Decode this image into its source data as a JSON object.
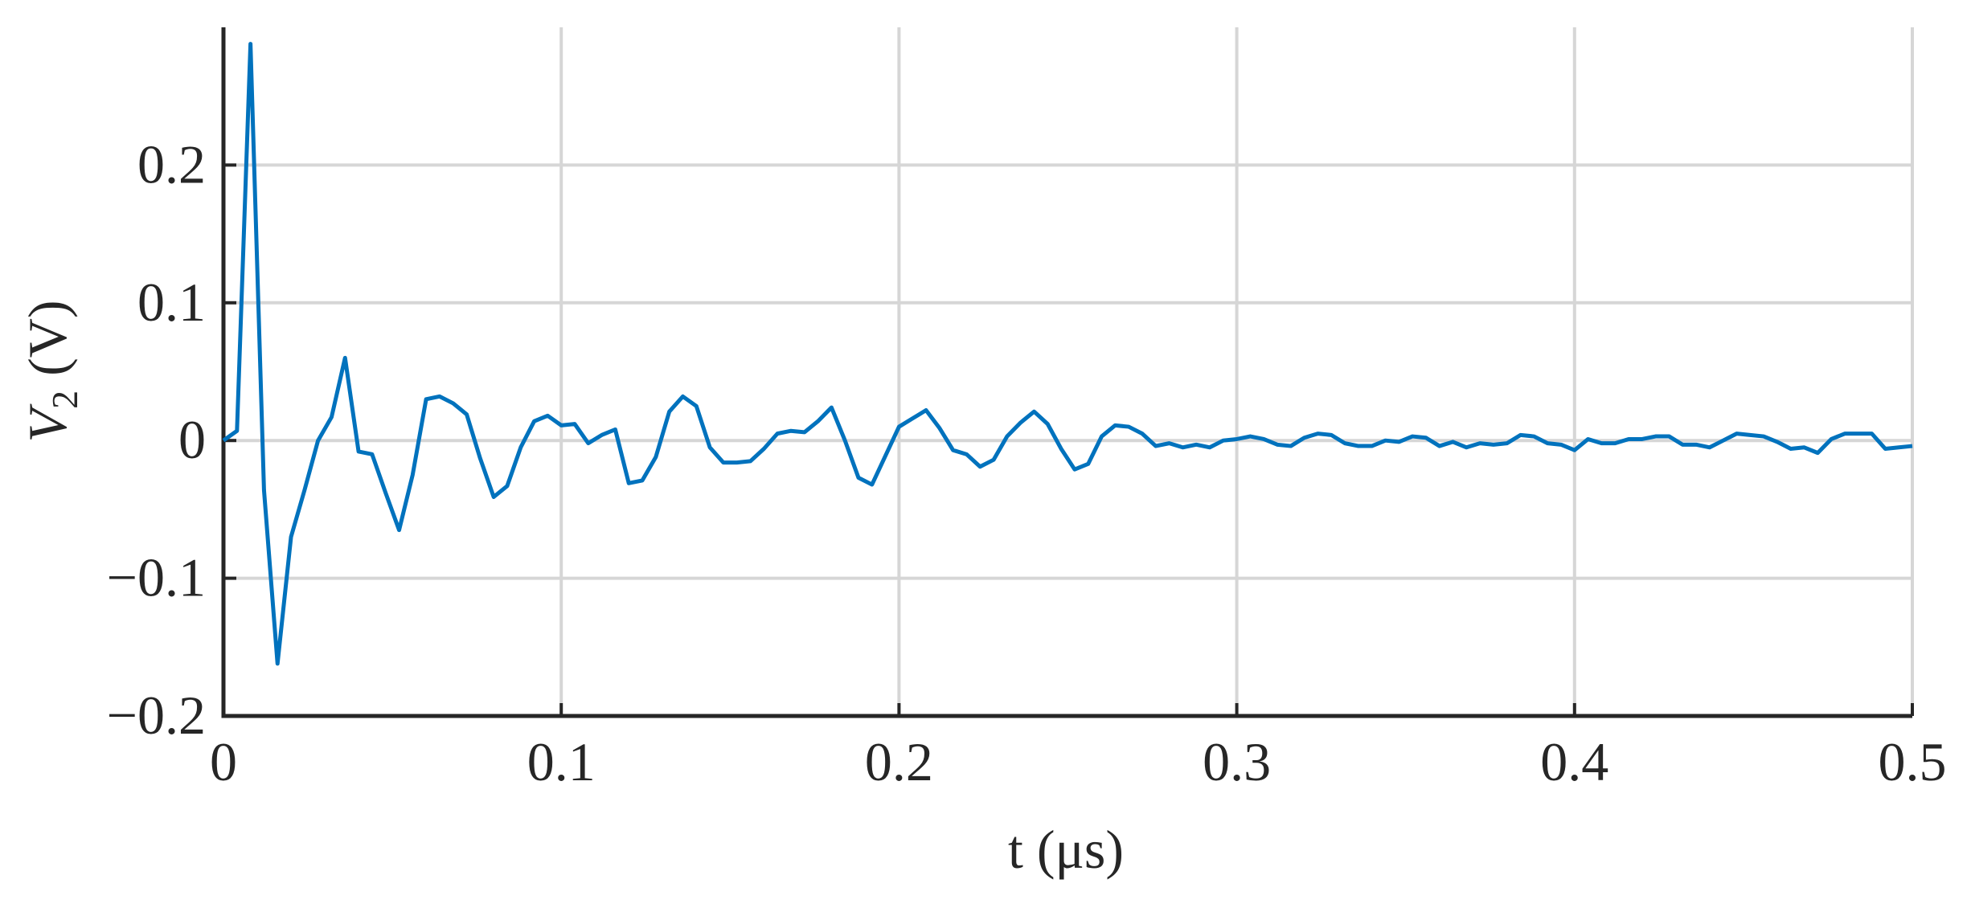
{
  "chart_data": {
    "type": "line",
    "xlabel": "t (μs)",
    "ylabel": {
      "symbol": "V",
      "subscript": "2",
      "unit": "(V)"
    },
    "xlim": [
      0,
      0.5
    ],
    "ylim": [
      -0.2,
      0.3
    ],
    "xticks": [
      0,
      0.1,
      0.2,
      0.3,
      0.4,
      0.5
    ],
    "yticks": [
      {
        "value": -0.2,
        "label": "−0.2"
      },
      {
        "value": -0.1,
        "label": "−0.1"
      },
      0,
      0.1,
      0.2
    ],
    "grid": true,
    "x": [
      0,
      0.004,
      0.008,
      0.012,
      0.016,
      0.02,
      0.024,
      0.028,
      0.032,
      0.036,
      0.04,
      0.044,
      0.048,
      0.052,
      0.056,
      0.06,
      0.064,
      0.068,
      0.072,
      0.076,
      0.08,
      0.084,
      0.088,
      0.092,
      0.096,
      0.1,
      0.104,
      0.108,
      0.112,
      0.116,
      0.12,
      0.124,
      0.128,
      0.132,
      0.136,
      0.14,
      0.144,
      0.148,
      0.152,
      0.156,
      0.16,
      0.164,
      0.168,
      0.172,
      0.176,
      0.18,
      0.184,
      0.188,
      0.192,
      0.196,
      0.2,
      0.204,
      0.208,
      0.212,
      0.216,
      0.22,
      0.224,
      0.228,
      0.232,
      0.236,
      0.24,
      0.244,
      0.248,
      0.252,
      0.256,
      0.26,
      0.264,
      0.268,
      0.272,
      0.276,
      0.28,
      0.284,
      0.288,
      0.292,
      0.296,
      0.3,
      0.304,
      0.308,
      0.312,
      0.316,
      0.32,
      0.324,
      0.328,
      0.332,
      0.336,
      0.34,
      0.344,
      0.348,
      0.352,
      0.356,
      0.36,
      0.364,
      0.368,
      0.372,
      0.376,
      0.38,
      0.384,
      0.388,
      0.392,
      0.396,
      0.4,
      0.404,
      0.408,
      0.412,
      0.416,
      0.42,
      0.424,
      0.428,
      0.432,
      0.436,
      0.44,
      0.444,
      0.448,
      0.452,
      0.456,
      0.46,
      0.464,
      0.468,
      0.472,
      0.476,
      0.48,
      0.484,
      0.488,
      0.492,
      0.496,
      0.5
    ],
    "series": [
      {
        "color": "#0072bd",
        "values": [
          0,
          0.007,
          0.288,
          -0.036,
          -0.162,
          -0.07,
          -0.036,
          0,
          0.017,
          0.06,
          -0.008,
          -0.01,
          -0.038,
          -0.065,
          -0.025,
          0.03,
          0.032,
          0.027,
          0.019,
          -0.013,
          -0.041,
          -0.033,
          -0.005,
          0.014,
          0.018,
          0.011,
          0.012,
          -0.002,
          0.004,
          0.008,
          -0.031,
          -0.029,
          -0.012,
          0.021,
          0.032,
          0.025,
          -0.005,
          -0.016,
          -0.016,
          -0.015,
          -0.006,
          0.005,
          0.007,
          0.006,
          0.014,
          0.024,
          0,
          -0.027,
          -0.032,
          -0.011,
          0.01,
          0.016,
          0.022,
          0.009,
          -0.007,
          -0.01,
          -0.019,
          -0.014,
          0.003,
          0.013,
          0.021,
          0.012,
          -0.006,
          -0.021,
          -0.017,
          0.003,
          0.011,
          0.01,
          0.005,
          -0.004,
          -0.002,
          -0.005,
          -0.003,
          -0.005,
          0,
          0.001,
          0.003,
          0.001,
          -0.003,
          -0.004,
          0.002,
          0.005,
          0.004,
          -0.002,
          -0.004,
          -0.004,
          0,
          -0.001,
          0.003,
          0.002,
          -0.004,
          -0.001,
          -0.005,
          -0.002,
          -0.003,
          -0.002,
          0.004,
          0.003,
          -0.002,
          -0.003,
          -0.007,
          0.001,
          -0.002,
          -0.002,
          0.001,
          0.001,
          0.003,
          0.003,
          -0.003,
          -0.003,
          -0.005,
          0,
          0.005,
          0.004,
          0.003,
          -0.001,
          -0.006,
          -0.005,
          -0.009,
          0.001,
          0.005,
          0.005,
          0.005,
          -0.006,
          -0.005,
          -0.004
        ]
      }
    ]
  }
}
